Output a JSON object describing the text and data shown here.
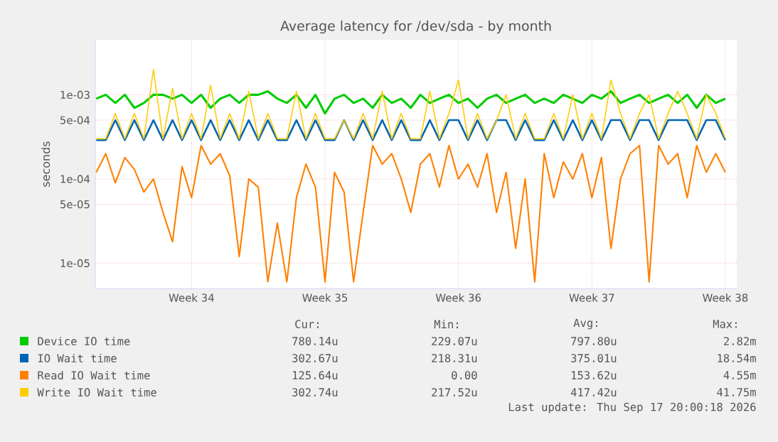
{
  "chart_data": {
    "type": "line",
    "title": "Average latency for /dev/sda - by month",
    "ylabel": "seconds",
    "categories": [
      null,
      null,
      null,
      null,
      null,
      null,
      null,
      null,
      null,
      null,
      "Week 34",
      null,
      null,
      null,
      null,
      null,
      null,
      null,
      null,
      null,
      null,
      null,
      null,
      null,
      "Week 35",
      null,
      null,
      null,
      null,
      null,
      null,
      null,
      null,
      null,
      null,
      null,
      null,
      null,
      "Week 36",
      null,
      null,
      null,
      null,
      null,
      null,
      null,
      null,
      null,
      null,
      null,
      null,
      null,
      "Week 37",
      null,
      null,
      null,
      null,
      null,
      null,
      null,
      null,
      null,
      null,
      null,
      null,
      null,
      "Week 38"
    ],
    "series": [
      {
        "name": "Device IO time",
        "color": "#00cc00",
        "values": [
          0.0009,
          0.001,
          0.0008,
          0.001,
          0.0007,
          0.0008,
          0.001,
          0.001,
          0.0009,
          0.001,
          0.0008,
          0.001,
          0.0007,
          0.0009,
          0.001,
          0.0008,
          0.001,
          0.001,
          0.0011,
          0.0009,
          0.0008,
          0.001,
          0.0007,
          0.001,
          0.0006,
          0.0009,
          0.001,
          0.0008,
          0.0009,
          0.0007,
          0.001,
          0.0008,
          0.0009,
          0.0007,
          0.001,
          0.0008,
          0.0009,
          0.001,
          0.0008,
          0.0009,
          0.0007,
          0.0009,
          0.001,
          0.0008,
          0.0009,
          0.001,
          0.0008,
          0.0009,
          0.0008,
          0.001,
          0.0009,
          0.0008,
          0.001,
          0.0009,
          0.0011,
          0.0008,
          0.0009,
          0.001,
          0.0008,
          0.0009,
          0.001,
          0.0008,
          0.001,
          0.0007,
          0.001,
          0.0008,
          0.0009
        ]
      },
      {
        "name": "IO Wait time",
        "color": "#0066b3",
        "values": [
          0.00029,
          0.00029,
          0.0005,
          0.00029,
          0.0005,
          0.00029,
          0.0005,
          0.00029,
          0.0005,
          0.00029,
          0.0005,
          0.00029,
          0.0005,
          0.00029,
          0.0005,
          0.00029,
          0.0005,
          0.00029,
          0.0005,
          0.00029,
          0.00029,
          0.0005,
          0.00029,
          0.0005,
          0.00029,
          0.00029,
          0.0005,
          0.00029,
          0.0005,
          0.00029,
          0.0005,
          0.00029,
          0.0005,
          0.00029,
          0.00029,
          0.0005,
          0.00029,
          0.0005,
          0.0005,
          0.00029,
          0.0005,
          0.00029,
          0.0005,
          0.0005,
          0.00029,
          0.0005,
          0.00029,
          0.00029,
          0.0005,
          0.00029,
          0.0005,
          0.00029,
          0.0005,
          0.00029,
          0.0005,
          0.0005,
          0.00029,
          0.0005,
          0.0005,
          0.00029,
          0.0005,
          0.0005,
          0.0005,
          0.00029,
          0.0005,
          0.0005,
          0.00029
        ]
      },
      {
        "name": "Read IO Wait time",
        "color": "#ff8000",
        "values": [
          0.00012,
          0.0002,
          9e-05,
          0.00018,
          0.00013,
          7e-05,
          0.0001,
          4e-05,
          1.8e-05,
          0.00014,
          6e-05,
          0.00025,
          0.00015,
          0.0002,
          0.00011,
          1.2e-05,
          0.0001,
          8e-05,
          6e-06,
          3e-05,
          6e-06,
          6e-05,
          0.00015,
          8e-05,
          6e-06,
          0.00012,
          7e-05,
          6e-06,
          4e-05,
          0.00025,
          0.00015,
          0.0002,
          0.0001,
          4e-05,
          0.00015,
          0.0002,
          8e-05,
          0.00025,
          0.0001,
          0.00015,
          8e-05,
          0.0002,
          4e-05,
          0.00012,
          1.5e-05,
          0.0001,
          6e-06,
          0.0002,
          6e-05,
          0.00016,
          0.0001,
          0.0002,
          6e-05,
          0.00018,
          1.5e-05,
          0.0001,
          0.0002,
          0.00025,
          6e-06,
          0.00025,
          0.00015,
          0.0002,
          6e-05,
          0.00025,
          0.00012,
          0.0002,
          0.00012
        ]
      },
      {
        "name": "Write IO Wait time",
        "color": "#ffcc00",
        "values": [
          0.0003,
          0.0003,
          0.0006,
          0.0003,
          0.0006,
          0.0003,
          0.002,
          0.0003,
          0.0012,
          0.0003,
          0.0006,
          0.0003,
          0.0013,
          0.0003,
          0.0006,
          0.0003,
          0.0011,
          0.0003,
          0.0006,
          0.0003,
          0.0003,
          0.0011,
          0.0003,
          0.0006,
          0.0003,
          0.0003,
          0.0005,
          0.0003,
          0.0006,
          0.0003,
          0.0011,
          0.0003,
          0.0006,
          0.0003,
          0.0003,
          0.0011,
          0.0003,
          0.0006,
          0.0015,
          0.0003,
          0.0006,
          0.0003,
          0.0005,
          0.001,
          0.0003,
          0.0006,
          0.0003,
          0.0003,
          0.0006,
          0.0003,
          0.001,
          0.0003,
          0.0006,
          0.0003,
          0.0015,
          0.0006,
          0.0003,
          0.0006,
          0.001,
          0.0003,
          0.0006,
          0.0011,
          0.0006,
          0.0003,
          0.001,
          0.0006,
          0.0003
        ]
      }
    ],
    "log": "y",
    "ylim": [
      5e-06,
      0.0045
    ],
    "yticks": [
      {
        "value": 1e-05,
        "label": "1e-05"
      },
      {
        "value": 5e-05,
        "label": "5e-05"
      },
      {
        "value": 0.0001,
        "label": "1e-04"
      },
      {
        "value": 0.0005,
        "label": "5e-04"
      },
      {
        "value": 0.001,
        "label": "1e-03"
      }
    ],
    "grid": true,
    "legend": "bottom",
    "annotations": [
      "Cur:",
      "Min:",
      "Avg:",
      "Max:",
      "780.14u",
      "229.07u",
      "797.80u",
      "2.82m",
      "302.67u",
      "218.31u",
      "375.01u",
      "18.54m",
      "125.64u",
      "0.00",
      "153.62u",
      "4.55m",
      "302.74u",
      "217.52u",
      "417.42u",
      "41.75m",
      "Last update: Thu Sep 17 20:00:18 2026"
    ]
  }
}
